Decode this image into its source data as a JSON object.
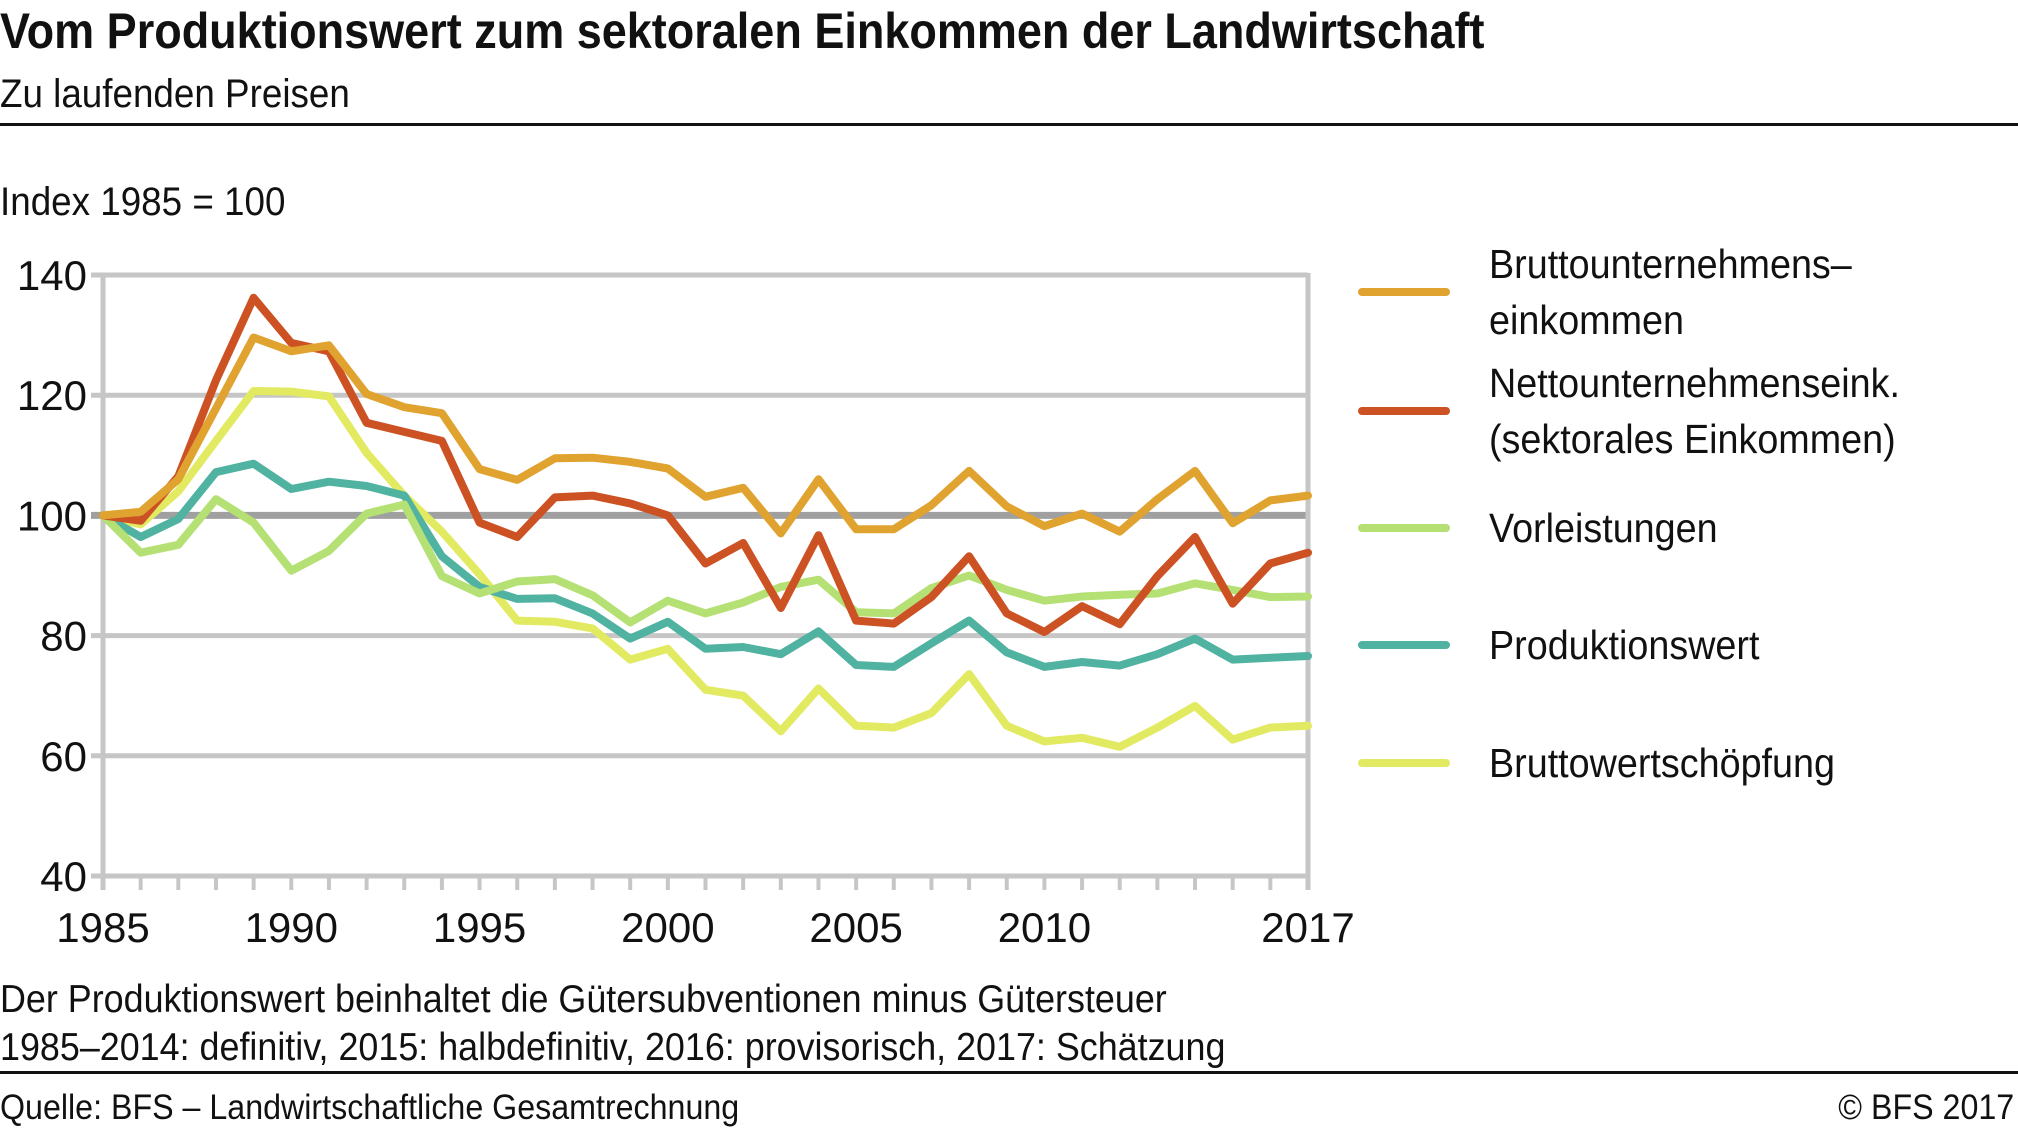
{
  "chart_data": {
    "type": "line",
    "title": "Vom Produktionswert zum sektoralen Einkommen der Landwirtschaft",
    "subtitle": "Zu laufenden Preisen",
    "ylabel": "Index 1985 = 100",
    "xlabel": "",
    "xlim": [
      1985,
      2017
    ],
    "ylim": [
      40,
      140
    ],
    "yticks": [
      40,
      60,
      80,
      100,
      120,
      140
    ],
    "xtick_labels": [
      1985,
      1990,
      1995,
      2000,
      2005,
      2010,
      2017
    ],
    "grid": true,
    "reference_line": 100,
    "legend_placement": "right",
    "x": [
      1985,
      1986,
      1987,
      1988,
      1989,
      1990,
      1991,
      1992,
      1993,
      1994,
      1995,
      1996,
      1997,
      1998,
      1999,
      2000,
      2001,
      2002,
      2003,
      2004,
      2005,
      2006,
      2007,
      2008,
      2009,
      2010,
      2011,
      2012,
      2013,
      2014,
      2015,
      2016,
      2017
    ],
    "series": [
      {
        "name": "Bruttounternehmens–einkommen",
        "legend_lines": [
          "Bruttounternehmens–",
          "einkommen"
        ],
        "color": "#e0a330",
        "values": [
          100,
          100.6,
          106,
          117.8,
          129.6,
          127.3,
          128.3,
          120.2,
          118,
          117,
          107.7,
          105.9,
          109.5,
          109.6,
          108.9,
          107.8,
          103.1,
          104.6,
          97,
          106,
          97.7,
          97.7,
          101.7,
          107.4,
          101.5,
          98.2,
          100.3,
          97.3,
          102.7,
          107.4,
          98.7,
          102.5,
          103.3
        ]
      },
      {
        "name": "Nettounternehmenseink. (sektorales Einkommen)",
        "legend_lines": [
          "Nettounternehmenseink.",
          "(sektorales Einkommen)"
        ],
        "color": "#cc5224",
        "values": [
          100,
          99.1,
          106.5,
          122.5,
          136.2,
          128.7,
          127.3,
          115.4,
          113.9,
          112.4,
          98.8,
          96.4,
          103,
          103.3,
          102,
          100,
          92,
          95.4,
          84.6,
          96.7,
          82.5,
          82,
          86.4,
          93.2,
          83.7,
          80.6,
          84.9,
          81.9,
          89.9,
          96.4,
          85.3,
          92,
          93.8
        ]
      },
      {
        "name": "Vorleistungen",
        "legend_lines": [
          "Vorleistungen"
        ],
        "color": "#b5e074",
        "values": [
          100,
          93.8,
          95.1,
          102.7,
          98.8,
          90.8,
          94.1,
          100.3,
          101.8,
          89.9,
          87,
          89,
          89.4,
          86.7,
          82.2,
          85.8,
          83.7,
          85.5,
          88.1,
          89.3,
          83.9,
          83.7,
          87.9,
          90,
          87.6,
          85.8,
          86.5,
          86.8,
          87,
          88.7,
          87.6,
          86.4,
          86.5
        ]
      },
      {
        "name": "Produktionswert",
        "legend_lines": [
          "Produktionswert"
        ],
        "color": "#50b2a0",
        "values": [
          100,
          96.4,
          99.4,
          107.2,
          108.6,
          104.4,
          105.6,
          104.9,
          103.3,
          93.2,
          88.1,
          86.1,
          86.2,
          83.7,
          79.5,
          82.3,
          77.8,
          78.1,
          76.9,
          80.7,
          75.1,
          74.8,
          78.7,
          82.5,
          77.2,
          74.8,
          75.6,
          75,
          76.9,
          79.5,
          76,
          76.3,
          76.6
        ]
      },
      {
        "name": "Bruttowertschöpfung",
        "legend_lines": [
          "Bruttowertschöpfung"
        ],
        "color": "#e2ea62",
        "values": [
          100,
          98.5,
          104,
          112.4,
          120.7,
          120.6,
          119.8,
          110.4,
          103.3,
          97.3,
          90.2,
          82.5,
          82.3,
          81.2,
          76,
          77.8,
          71,
          70,
          64.1,
          71.2,
          65,
          64.7,
          67.1,
          73.6,
          65,
          62.4,
          63,
          61.5,
          64.7,
          68.3,
          62.7,
          64.7,
          65
        ]
      }
    ],
    "grid_color": "#c6c6c6",
    "reference_line_color": "#a0a0a0"
  },
  "footer": {
    "note_1": "Der Produktionswert beinhaltet die Gütersubventionen minus Gütersteuer",
    "note_2": "1985–2014: definitiv, 2015: halbdefinitiv, 2016: provisorisch, 2017: Schätzung",
    "source": "Quelle: BFS – Landwirtschaftliche Gesamtrechnung",
    "copyright": "© BFS  2017"
  }
}
